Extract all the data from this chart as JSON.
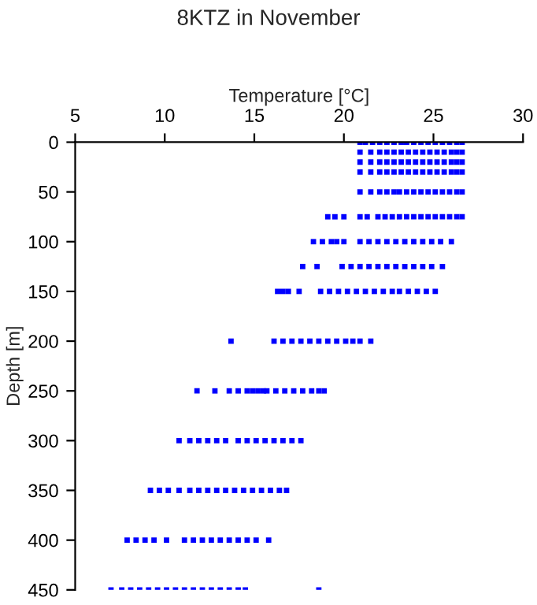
{
  "chart_data": {
    "type": "scatter",
    "title": "8KTZ in November",
    "xlabel": "Temperature [°C]",
    "ylabel": "Depth [m]",
    "xlim": [
      5,
      30
    ],
    "xticks": [
      5,
      10,
      15,
      20,
      25,
      30
    ],
    "ylim": [
      450,
      0
    ],
    "yticks": [
      0,
      50,
      100,
      150,
      200,
      250,
      300,
      350,
      400,
      450
    ],
    "grid": false,
    "marker": "square",
    "series": [
      {
        "color": "#0000ff",
        "x": [
          20.9,
          21.2,
          21.6,
          22.0,
          22.4,
          22.8,
          23.2,
          23.5,
          23.9,
          24.3,
          24.7,
          25.1,
          25.5,
          25.9,
          26.3,
          26.6
        ],
        "values": [
          0,
          0,
          0,
          0,
          0,
          0,
          0,
          0,
          0,
          0,
          0,
          0,
          0,
          0,
          0,
          0
        ]
      },
      {
        "color": "#0000ff",
        "x": [
          20.9,
          21.5,
          22.0,
          22.4,
          22.8,
          23.2,
          23.6,
          24.0,
          24.4,
          24.8,
          25.2,
          25.6,
          26.0,
          26.3,
          26.6
        ],
        "values": [
          10,
          10,
          10,
          10,
          10,
          10,
          10,
          10,
          10,
          10,
          10,
          10,
          10,
          10,
          10
        ]
      },
      {
        "color": "#0000ff",
        "x": [
          20.9,
          21.5,
          22.0,
          22.4,
          22.8,
          23.2,
          23.6,
          24.0,
          24.4,
          24.8,
          25.2,
          25.6,
          26.0,
          26.3,
          26.6
        ],
        "values": [
          20,
          20,
          20,
          20,
          20,
          20,
          20,
          20,
          20,
          20,
          20,
          20,
          20,
          20,
          20
        ]
      },
      {
        "color": "#0000ff",
        "x": [
          20.9,
          21.5,
          22.0,
          22.4,
          22.8,
          23.2,
          23.6,
          24.0,
          24.4,
          24.8,
          25.2,
          25.6,
          26.0,
          26.3,
          26.6
        ],
        "values": [
          30,
          30,
          30,
          30,
          30,
          30,
          30,
          30,
          30,
          30,
          30,
          30,
          30,
          30,
          30
        ]
      },
      {
        "color": "#0000ff",
        "x": [
          20.9,
          21.5,
          22.0,
          22.4,
          22.8,
          23.1,
          23.5,
          23.9,
          24.3,
          24.7,
          25.1,
          25.5,
          25.9,
          26.3,
          26.6
        ],
        "values": [
          50,
          50,
          50,
          50,
          50,
          50,
          50,
          50,
          50,
          50,
          50,
          50,
          50,
          50,
          50
        ]
      },
      {
        "color": "#0000ff",
        "x": [
          19.1,
          19.5,
          20.0,
          20.9,
          21.3,
          21.9,
          22.3,
          22.7,
          23.1,
          23.5,
          23.9,
          24.3,
          24.7,
          25.1,
          25.5,
          25.9,
          26.3,
          26.6
        ],
        "values": [
          75,
          75,
          75,
          75,
          75,
          75,
          75,
          75,
          75,
          75,
          75,
          75,
          75,
          75,
          75,
          75,
          75,
          75
        ]
      },
      {
        "color": "#0000ff",
        "x": [
          18.3,
          18.8,
          19.3,
          19.6,
          20.0,
          20.9,
          21.4,
          21.9,
          22.4,
          22.9,
          23.4,
          23.9,
          24.4,
          24.9,
          25.4,
          26.0
        ],
        "values": [
          100,
          100,
          100,
          100,
          100,
          100,
          100,
          100,
          100,
          100,
          100,
          100,
          100,
          100,
          100,
          100
        ]
      },
      {
        "color": "#0000ff",
        "x": [
          17.7,
          18.5,
          19.9,
          20.4,
          20.9,
          21.4,
          21.9,
          22.4,
          22.9,
          23.4,
          23.9,
          24.4,
          24.9,
          25.5
        ],
        "values": [
          125,
          125,
          125,
          125,
          125,
          125,
          125,
          125,
          125,
          125,
          125,
          125,
          125,
          125
        ]
      },
      {
        "color": "#0000ff",
        "x": [
          16.3,
          16.6,
          16.9,
          17.5,
          18.7,
          19.2,
          19.7,
          20.2,
          20.7,
          21.2,
          21.7,
          22.2,
          22.7,
          23.1,
          23.6,
          24.1,
          24.6,
          25.1
        ],
        "values": [
          150,
          150,
          150,
          150,
          150,
          150,
          150,
          150,
          150,
          150,
          150,
          150,
          150,
          150,
          150,
          150,
          150,
          150
        ]
      },
      {
        "color": "#0000ff",
        "x": [
          13.7,
          16.1,
          16.6,
          17.1,
          17.6,
          18.1,
          18.6,
          19.1,
          19.6,
          20.1,
          20.5,
          20.9,
          21.5
        ],
        "values": [
          200,
          200,
          200,
          200,
          200,
          200,
          200,
          200,
          200,
          200,
          200,
          200,
          200
        ]
      },
      {
        "color": "#0000ff",
        "x": [
          11.8,
          12.8,
          13.6,
          14.1,
          14.6,
          14.9,
          15.2,
          15.5,
          15.7,
          16.2,
          16.7,
          17.2,
          17.7,
          18.2,
          18.6,
          18.9
        ],
        "values": [
          250,
          250,
          250,
          250,
          250,
          250,
          250,
          250,
          250,
          250,
          250,
          250,
          250,
          250,
          250,
          250
        ]
      },
      {
        "color": "#0000ff",
        "x": [
          10.8,
          11.4,
          11.9,
          12.4,
          12.9,
          13.4,
          14.1,
          14.6,
          15.1,
          15.6,
          16.1,
          16.6,
          17.1,
          17.6
        ],
        "values": [
          300,
          300,
          300,
          300,
          300,
          300,
          300,
          300,
          300,
          300,
          300,
          300,
          300,
          300
        ]
      },
      {
        "color": "#0000ff",
        "x": [
          9.2,
          9.7,
          10.2,
          10.8,
          11.4,
          11.9,
          12.4,
          12.9,
          13.4,
          13.9,
          14.4,
          14.9,
          15.4,
          15.9,
          16.4,
          16.8
        ],
        "values": [
          350,
          350,
          350,
          350,
          350,
          350,
          350,
          350,
          350,
          350,
          350,
          350,
          350,
          350,
          350,
          350
        ]
      },
      {
        "color": "#0000ff",
        "x": [
          7.9,
          8.4,
          8.9,
          9.4,
          10.1,
          11.1,
          11.6,
          12.1,
          12.6,
          13.1,
          13.6,
          14.1,
          14.6,
          15.1,
          15.8
        ],
        "values": [
          400,
          400,
          400,
          400,
          400,
          400,
          400,
          400,
          400,
          400,
          400,
          400,
          400,
          400,
          400
        ]
      },
      {
        "color": "#0000ff",
        "x": [
          7.0,
          7.6,
          8.1,
          8.6,
          9.1,
          9.6,
          10.1,
          10.6,
          11.1,
          11.6,
          12.1,
          12.6,
          13.1,
          13.6,
          14.1,
          14.5,
          18.6
        ],
        "values": [
          450,
          450,
          450,
          450,
          450,
          450,
          450,
          450,
          450,
          450,
          450,
          450,
          450,
          450,
          450,
          450,
          450
        ]
      }
    ]
  }
}
